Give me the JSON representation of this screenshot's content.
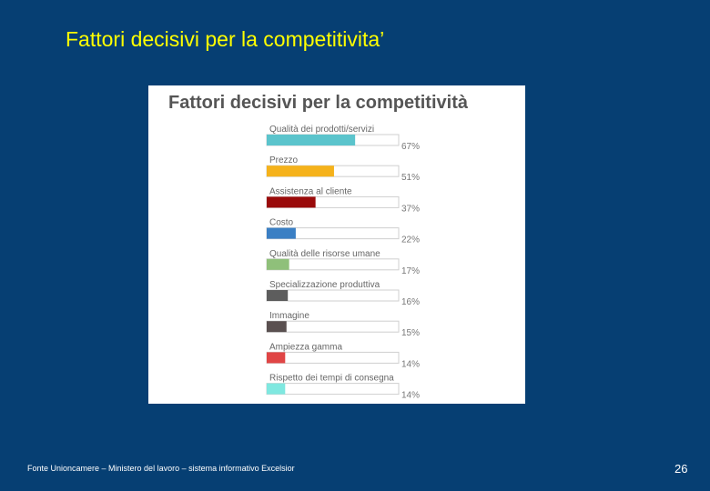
{
  "slide": {
    "title": "Fattori decisivi per la competitivita’",
    "source": "Fonte Unioncamere – Ministero del lavoro – sistema informativo Excelsior",
    "page_number": "26"
  },
  "chart_data": {
    "type": "bar",
    "orientation": "horizontal",
    "title": "Fattori decisivi per la competitività",
    "categories": [
      "Qualità dei prodotti/servizi",
      "Prezzo",
      "Assistenza al cliente",
      "Costo",
      "Qualità delle risorse umane",
      "Specializzazione produttiva",
      "Immagine",
      "Ampiezza gamma",
      "Rispetto dei tempi di consegna"
    ],
    "values": [
      67,
      51,
      37,
      22,
      17,
      16,
      15,
      14,
      14
    ],
    "value_labels": [
      "67%",
      "51%",
      "37%",
      "22%",
      "17%",
      "16%",
      "15%",
      "14%",
      "14%"
    ],
    "colors": [
      "#5bc4cc",
      "#f5b21b",
      "#9a0a0a",
      "#3a7fc4",
      "#8fc07a",
      "#5d5d5d",
      "#5a5050",
      "#e04545",
      "#7fe8e0"
    ],
    "xlim": [
      0,
      100
    ],
    "grid": false,
    "legend": "none"
  }
}
